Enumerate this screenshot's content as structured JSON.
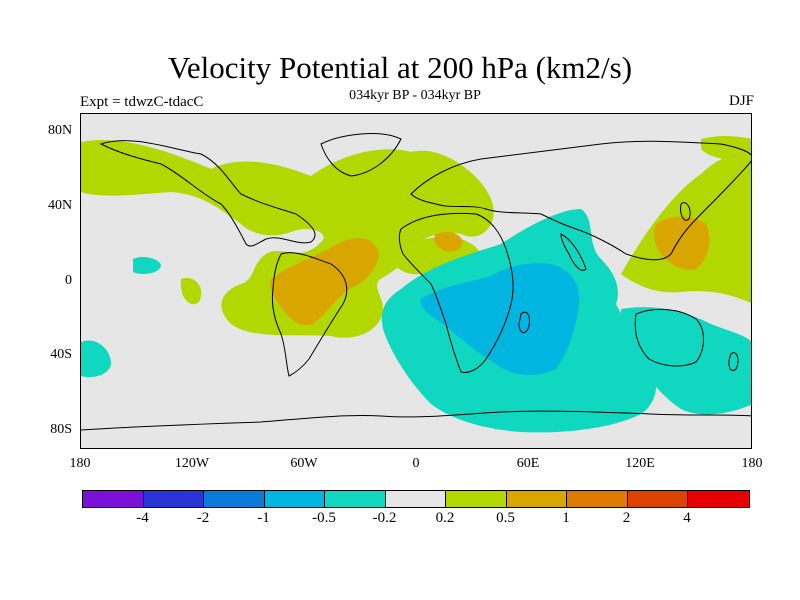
{
  "title": "Velocity Potential at 200 hPa (km2/s)",
  "subtitle": "034kyr BP - 034kyr BP",
  "left_label": "Expt = tdwzC-tdacC",
  "right_label": "DJF",
  "lat_labels": [
    "80N",
    "40N",
    "0",
    "40S",
    "80S"
  ],
  "lon_labels": [
    "180",
    "120W",
    "60W",
    "0",
    "60E",
    "120E",
    "180"
  ],
  "colorbar": {
    "colors": [
      "#7b11d8",
      "#2a35d8",
      "#0a7bd8",
      "#00b5e0",
      "#10d8c0",
      "#e6e6e6",
      "#b3d700",
      "#d9a600",
      "#de7a00",
      "#dc4200",
      "#e80000"
    ],
    "labels": [
      "-4",
      "-2",
      "-1",
      "-0.5",
      "-0.2",
      "0.2",
      "0.5",
      "1",
      "2",
      "4"
    ]
  },
  "map_colors": {
    "background": "#e6e6e6",
    "pos_weak": "#b3d700",
    "pos_mid": "#d9a600",
    "neg_weak": "#10d8c0",
    "neg_mid": "#00b5e0"
  }
}
